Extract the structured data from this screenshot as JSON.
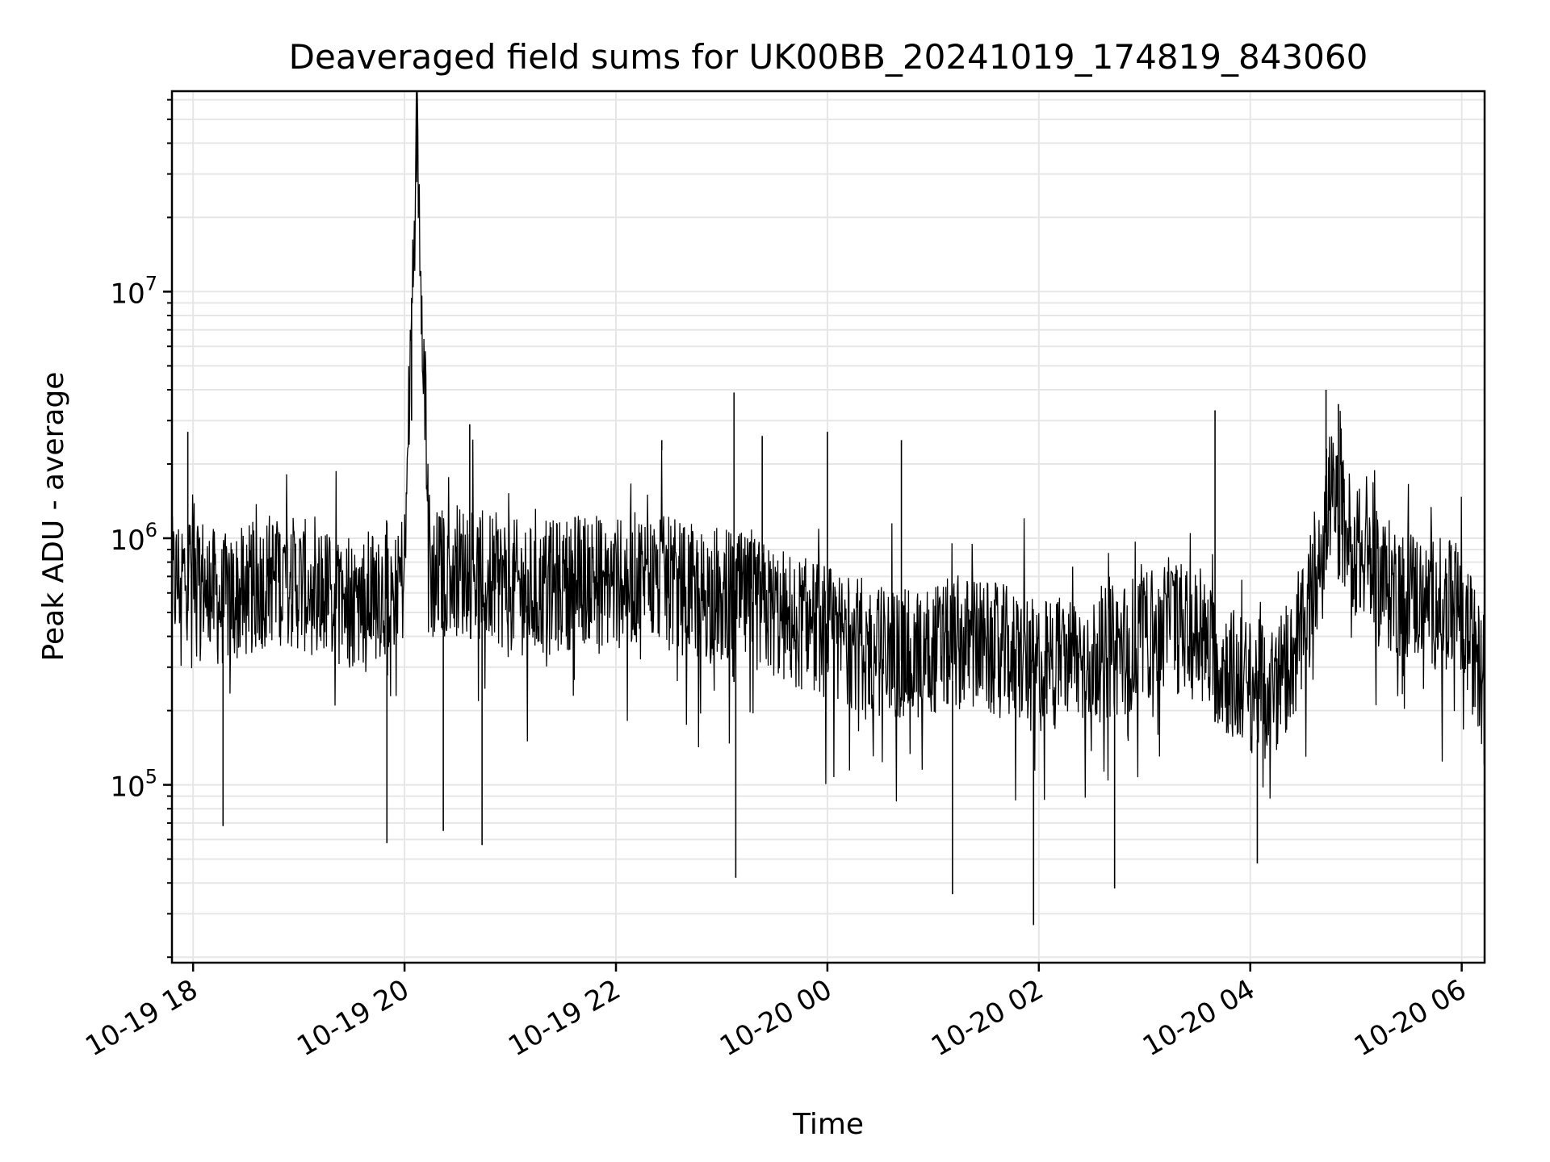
{
  "chart_data": {
    "type": "line",
    "title": "Deaveraged field sums for UK00BB_20241019_174819_843060",
    "xlabel": "Time",
    "ylabel": "Peak ADU - average",
    "yscale": "log",
    "ylim": [
      19000,
      65000000
    ],
    "xlim": [
      "2024-10-19T17:48",
      "2024-10-20T06:13"
    ],
    "grid": true,
    "line_color": "#000000",
    "grid_color": "#e6e6e6",
    "x_ticks": [
      {
        "value": "2024-10-19T18:00",
        "label": "10-19 18"
      },
      {
        "value": "2024-10-19T20:00",
        "label": "10-19 20"
      },
      {
        "value": "2024-10-19T22:00",
        "label": "10-19 22"
      },
      {
        "value": "2024-10-20T00:00",
        "label": "10-20 00"
      },
      {
        "value": "2024-10-20T02:00",
        "label": "10-20 02"
      },
      {
        "value": "2024-10-20T04:00",
        "label": "10-20 04"
      },
      {
        "value": "2024-10-20T06:00",
        "label": "10-20 06"
      }
    ],
    "y_ticks": [
      {
        "value": 100000,
        "base": "10",
        "exp": "5"
      },
      {
        "value": 1000000,
        "base": "10",
        "exp": "6"
      },
      {
        "value": 10000000,
        "base": "10",
        "exp": "7"
      }
    ],
    "series": [
      {
        "x": [
          "2024-10-19T17:48",
          "2024-10-19T18:00",
          "2024-10-19T18:15",
          "2024-10-19T18:30",
          "2024-10-19T18:45",
          "2024-10-19T19:00",
          "2024-10-19T19:15",
          "2024-10-19T19:30",
          "2024-10-19T19:45",
          "2024-10-19T20:00",
          "2024-10-19T20:07",
          "2024-10-19T20:15",
          "2024-10-19T20:30",
          "2024-10-19T20:45",
          "2024-10-19T21:00",
          "2024-10-19T21:15",
          "2024-10-19T21:30",
          "2024-10-19T21:45",
          "2024-10-19T22:00",
          "2024-10-19T22:15",
          "2024-10-19T22:30",
          "2024-10-19T22:45",
          "2024-10-19T23:00",
          "2024-10-19T23:15",
          "2024-10-19T23:30",
          "2024-10-19T23:45",
          "2024-10-20T00:00",
          "2024-10-20T00:15",
          "2024-10-20T00:30",
          "2024-10-20T00:45",
          "2024-10-20T01:00",
          "2024-10-20T01:15",
          "2024-10-20T01:30",
          "2024-10-20T01:45",
          "2024-10-20T02:00",
          "2024-10-20T02:15",
          "2024-10-20T02:30",
          "2024-10-20T02:45",
          "2024-10-20T03:00",
          "2024-10-20T03:15",
          "2024-10-20T03:30",
          "2024-10-20T03:45",
          "2024-10-20T04:00",
          "2024-10-20T04:15",
          "2024-10-20T04:30",
          "2024-10-20T04:45",
          "2024-10-20T05:00",
          "2024-10-20T05:15",
          "2024-10-20T05:30",
          "2024-10-20T05:45",
          "2024-10-20T06:00",
          "2024-10-20T06:13"
        ],
        "y": [
          650000,
          750000,
          550000,
          600000,
          700000,
          650000,
          600000,
          550000,
          600000,
          700000,
          46000000,
          700000,
          750000,
          700000,
          650000,
          600000,
          650000,
          700000,
          650000,
          700000,
          650000,
          600000,
          600000,
          550000,
          500000,
          450000,
          420000,
          380000,
          350000,
          330000,
          350000,
          380000,
          360000,
          340000,
          300000,
          320000,
          330000,
          350000,
          400000,
          450000,
          400000,
          300000,
          250000,
          250000,
          400000,
          1500000,
          900000,
          650000,
          600000,
          550000,
          500000,
          250000
        ]
      }
    ],
    "spikes": [
      {
        "x": "2024-10-19T17:57",
        "y": 2700000
      },
      {
        "x": "2024-10-19T20:04",
        "y": 3000000
      },
      {
        "x": "2024-10-19T20:37",
        "y": 2900000
      },
      {
        "x": "2024-10-19T22:26",
        "y": 2500000
      },
      {
        "x": "2024-10-19T23:07",
        "y": 3900000
      },
      {
        "x": "2024-10-19T23:23",
        "y": 2600000
      },
      {
        "x": "2024-10-20T00:00",
        "y": 2700000
      },
      {
        "x": "2024-10-20T00:42",
        "y": 2500000
      },
      {
        "x": "2024-10-20T03:40",
        "y": 3300000
      },
      {
        "x": "2024-10-20T04:43",
        "y": 4000000
      },
      {
        "x": "2024-10-20T04:50",
        "y": 3500000
      },
      {
        "x": "2024-10-19T18:17",
        "y": 68000
      },
      {
        "x": "2024-10-19T19:50",
        "y": 58000
      },
      {
        "x": "2024-10-19T20:22",
        "y": 65000
      },
      {
        "x": "2024-10-19T20:44",
        "y": 57000
      },
      {
        "x": "2024-10-19T23:08",
        "y": 42000
      },
      {
        "x": "2024-10-20T01:11",
        "y": 36000
      },
      {
        "x": "2024-10-20T01:57",
        "y": 27000
      },
      {
        "x": "2024-10-20T02:43",
        "y": 38000
      },
      {
        "x": "2024-10-20T04:04",
        "y": 48000
      }
    ]
  }
}
